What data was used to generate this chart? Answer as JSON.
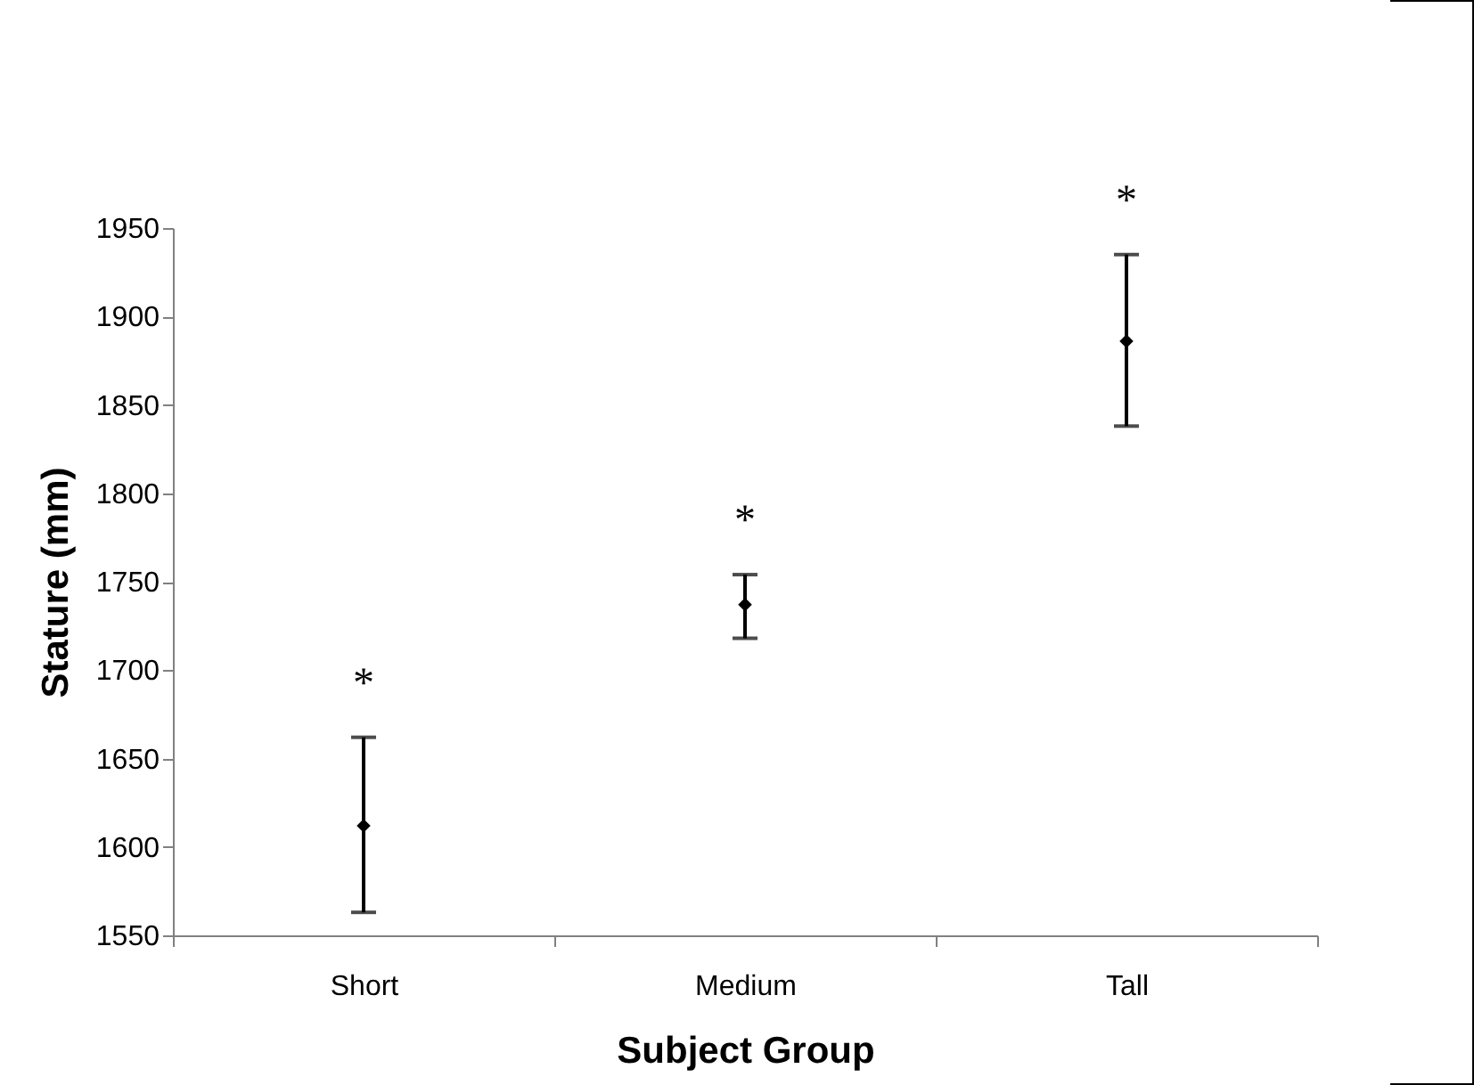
{
  "chart_data": {
    "type": "scatter",
    "xlabel": "Subject Group",
    "ylabel": "Stature (mm)",
    "categories": [
      "Short",
      "Medium",
      "Tall"
    ],
    "series": [
      {
        "color": "#000000",
        "values": [
          1612,
          1737,
          1886
        ],
        "errors": [
          [
            1563,
            1662
          ],
          [
            1718,
            1754
          ],
          [
            1838,
            1935
          ]
        ]
      }
    ],
    "ylim": [
      1550,
      1950
    ],
    "yticks": [
      1550,
      1600,
      1650,
      1700,
      1750,
      1800,
      1850,
      1900,
      1950
    ],
    "marker": "diamond",
    "grid": false,
    "annotations": [
      "*",
      "*",
      "*"
    ]
  }
}
